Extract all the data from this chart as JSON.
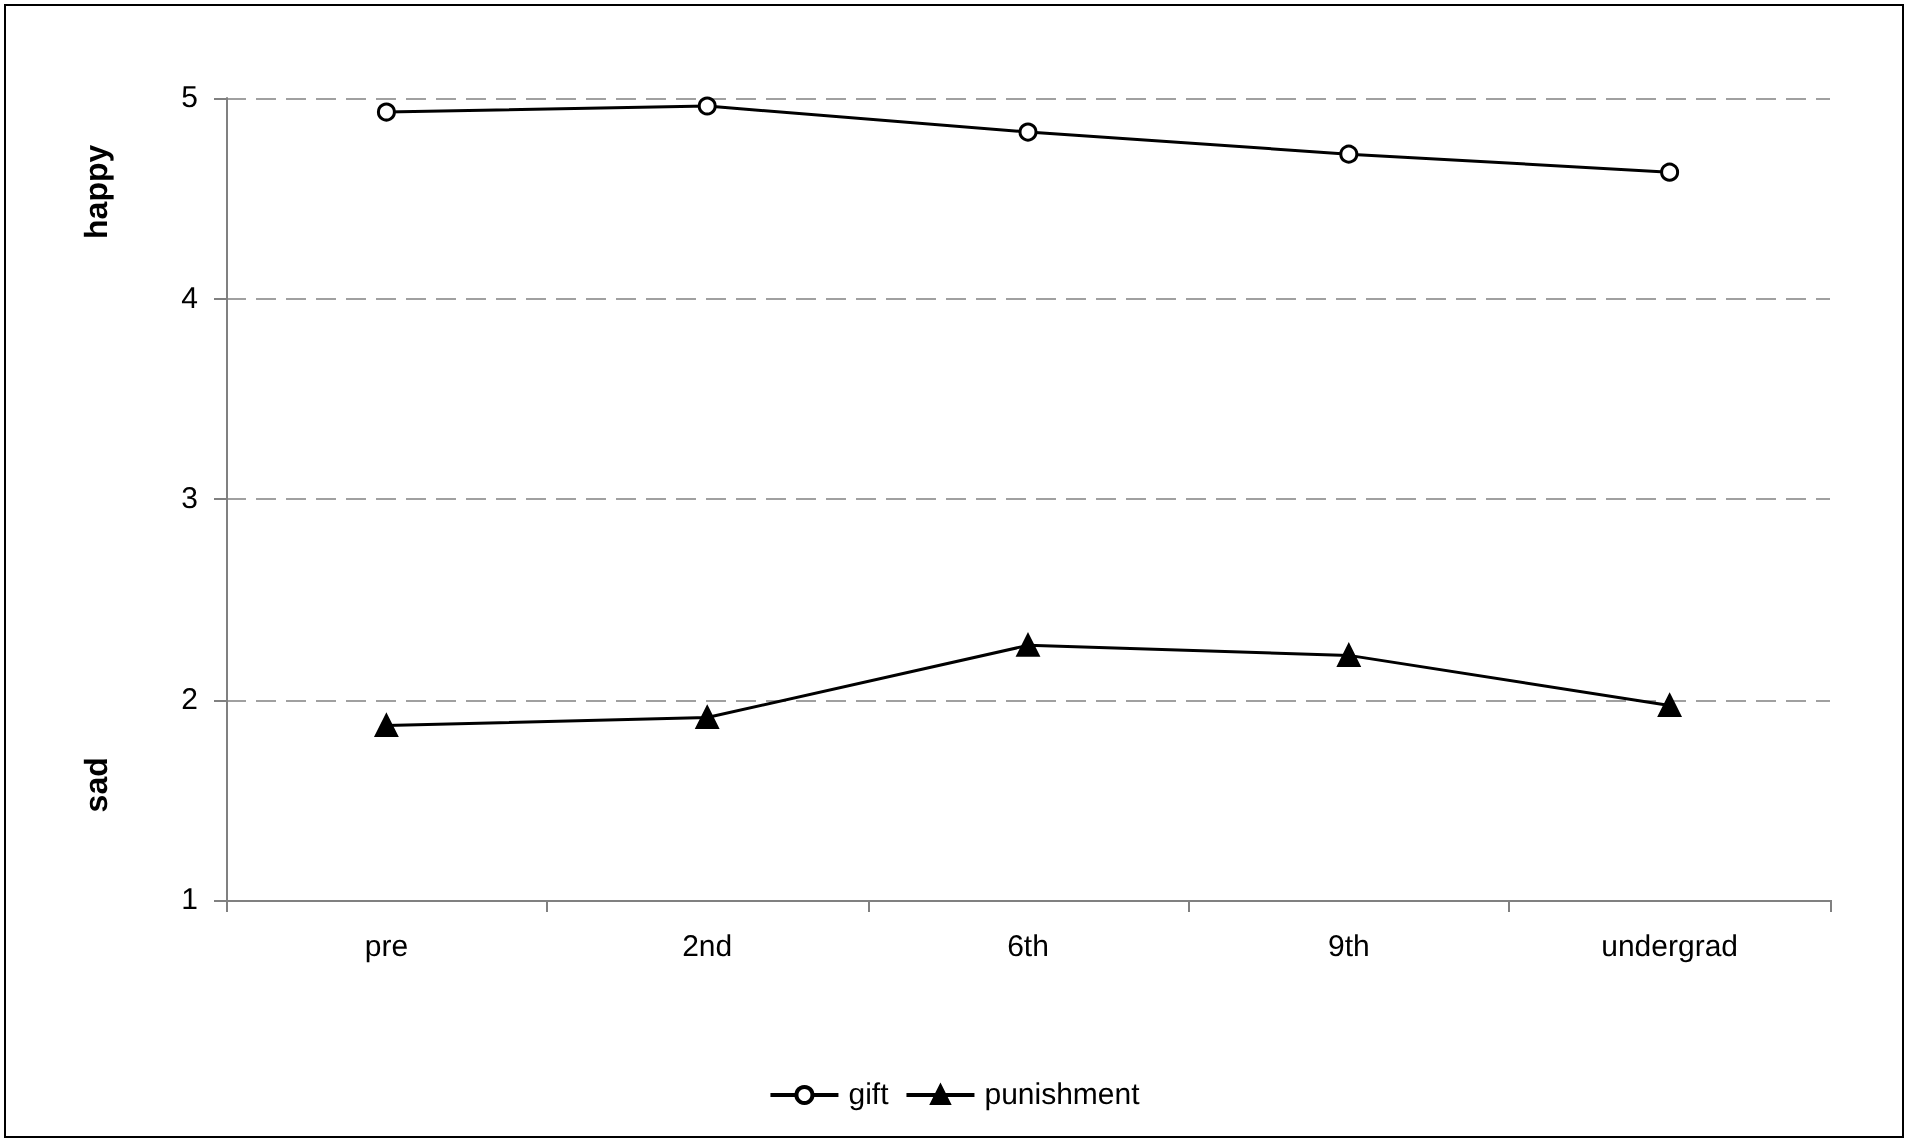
{
  "chart_data": {
    "type": "line",
    "categories": [
      "pre",
      "2nd",
      "6th",
      "9th",
      "undergrad"
    ],
    "series": [
      {
        "name": "gift",
        "color": "#000000",
        "marker": "circle",
        "values": [
          4.93,
          4.96,
          4.83,
          4.72,
          4.63
        ]
      },
      {
        "name": "punishment",
        "color": "#000000",
        "marker": "triangle",
        "values": [
          1.87,
          1.91,
          2.27,
          2.22,
          1.97
        ]
      }
    ],
    "ylim": [
      1,
      5
    ],
    "yticks": [
      1,
      2,
      3,
      4,
      5
    ],
    "grid": "y",
    "legend": "bottom",
    "line_style": "solid",
    "annotations": [
      "happy",
      "sad"
    ]
  }
}
